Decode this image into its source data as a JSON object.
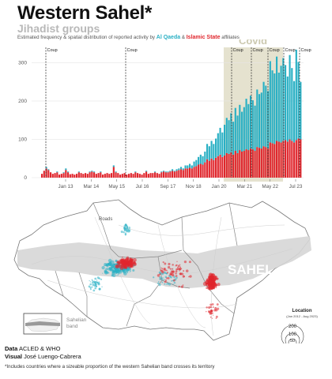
{
  "header": {
    "title": "Western Sahel*",
    "subtitle": "Jihadist groups",
    "description_prefix": "Estimated frequency & spatial distribution of reported activity by",
    "group_aq": "Al Qaeda",
    "amp": "&",
    "group_is": "Islamic State",
    "description_suffix": "affiliates"
  },
  "colors": {
    "al_qaeda": "#2ab0c4",
    "islamic_state": "#e0262d",
    "covid_band": "#e5e2cf",
    "map_land": "#ffffff",
    "sahel_band": "#d6d6d6"
  },
  "chart_data": {
    "type": "bar",
    "stacked": true,
    "x_ticks": [
      "Jan 13",
      "Mar 14",
      "May 15",
      "Jul 16",
      "Sep 17",
      "Nov 18",
      "Jan 20",
      "Mar 21",
      "May 22",
      "Jul 23"
    ],
    "y_ticks": [
      "0",
      "100",
      "200",
      "300"
    ],
    "ylim": [
      0,
      340
    ],
    "grid": true,
    "period": "weekly, Jan 2012 - Aug 2023",
    "series": [
      {
        "name": "Islamic State",
        "color": "#e0262d",
        "values": [
          10,
          18,
          24,
          20,
          14,
          10,
          12,
          14,
          8,
          10,
          12,
          20,
          14,
          9,
          10,
          8,
          10,
          14,
          12,
          10,
          12,
          10,
          14,
          16,
          14,
          10,
          12,
          14,
          8,
          10,
          12,
          10,
          12,
          28,
          14,
          12,
          8,
          10,
          12,
          8,
          10,
          12,
          10,
          14,
          12,
          10,
          8,
          12,
          16,
          10,
          12,
          12,
          14,
          12,
          10,
          14,
          16,
          14,
          14,
          16,
          18,
          16,
          18,
          20,
          22,
          20,
          24,
          24,
          26,
          24,
          28,
          30,
          34,
          36,
          34,
          40,
          48,
          44,
          50,
          46,
          52,
          56,
          60,
          54,
          58,
          64,
          62,
          66,
          60,
          70,
          64,
          72,
          68,
          70,
          74,
          72,
          76,
          74,
          70,
          80,
          78,
          76,
          82,
          80,
          76,
          92,
          90,
          88,
          96,
          94,
          92,
          96,
          98,
          94,
          100,
          96,
          92,
          98,
          102,
          100
        ]
      },
      {
        "name": "Al Qaeda",
        "color": "#2ab0c4",
        "values": [
          0,
          0,
          4,
          2,
          0,
          0,
          0,
          2,
          0,
          0,
          2,
          4,
          2,
          0,
          0,
          0,
          0,
          2,
          0,
          0,
          0,
          0,
          2,
          2,
          2,
          0,
          0,
          2,
          0,
          0,
          0,
          0,
          0,
          4,
          2,
          0,
          0,
          0,
          0,
          0,
          0,
          0,
          0,
          2,
          0,
          0,
          0,
          0,
          2,
          0,
          0,
          0,
          2,
          0,
          0,
          2,
          2,
          2,
          2,
          2,
          4,
          2,
          4,
          4,
          6,
          4,
          8,
          8,
          10,
          8,
          14,
          16,
          20,
          24,
          22,
          28,
          40,
          38,
          46,
          42,
          50,
          60,
          70,
          64,
          80,
          92,
          88,
          102,
          86,
          112,
          98,
          118,
          104,
          114,
          132,
          120,
          138,
          128,
          118,
          150,
          140,
          146,
          168,
          160,
          150,
          212,
          190,
          184,
          220,
          180,
          200,
          216,
          196,
          170,
          220,
          190,
          160,
          236,
          200,
          150
        ]
      }
    ],
    "covid_label": "Covid",
    "coup_label": "Coup",
    "coup_markers": [
      "Aug 2012",
      "Nov 2015",
      "Aug 2020",
      "May 2021",
      "Jan 2022",
      "Sep 2022",
      "Jul 2023"
    ]
  },
  "map": {
    "roads_label": "Roads",
    "sahel_label": "SAHEL",
    "inset_label_line1": "Sahelian",
    "inset_label_line2": "band",
    "legend_title": "Location",
    "legend_subtitle": "(Jan 2012 - Aug 2023)",
    "legend_sizes": [
      "200",
      "100",
      "50"
    ]
  },
  "credits": {
    "data_label": "Data",
    "data_value": "ACLED & WHO",
    "visual_label": "Visual",
    "visual_value": "José Luengo-Cabrera",
    "footnote": "*Includes countries where a sizeable proportion of the western Sahelian band crosses its territory"
  }
}
